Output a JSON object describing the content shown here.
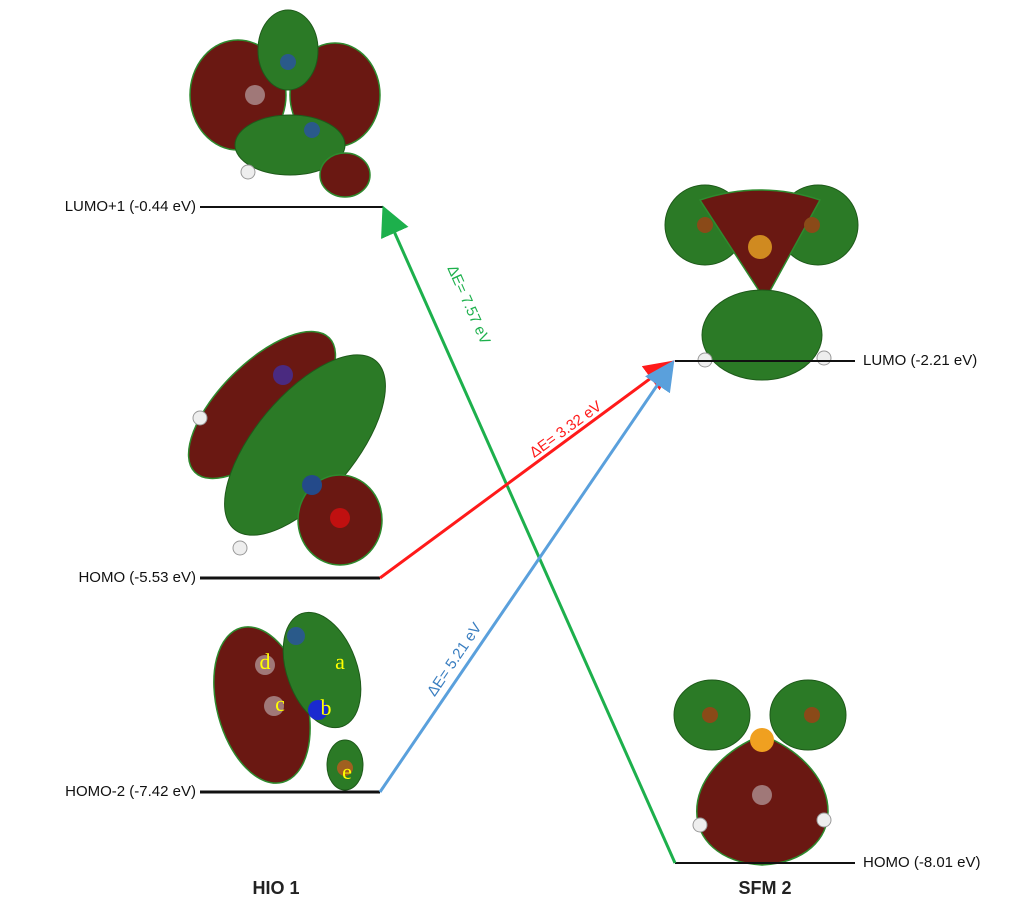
{
  "levels": [
    {
      "label": "LUMO+1 (-0.44 eV)"
    },
    {
      "label": "HOMO (-5.53 eV)"
    },
    {
      "label": "HOMO-2 (-7.42 eV)"
    },
    {
      "label": "LUMO (-2.21 eV)"
    },
    {
      "label": "HOMO (-8.01 eV)"
    }
  ],
  "transitions": [
    {
      "label": "ΔE= 7.57 eV"
    },
    {
      "label": "ΔE= 3.32 eV"
    },
    {
      "label": "ΔE= 5.21 eV"
    }
  ],
  "molecules": [
    {
      "name": "HIO 1"
    },
    {
      "name": "SFM 2"
    }
  ],
  "atom_labels": [
    "d",
    "a",
    "c",
    "b",
    "e"
  ]
}
